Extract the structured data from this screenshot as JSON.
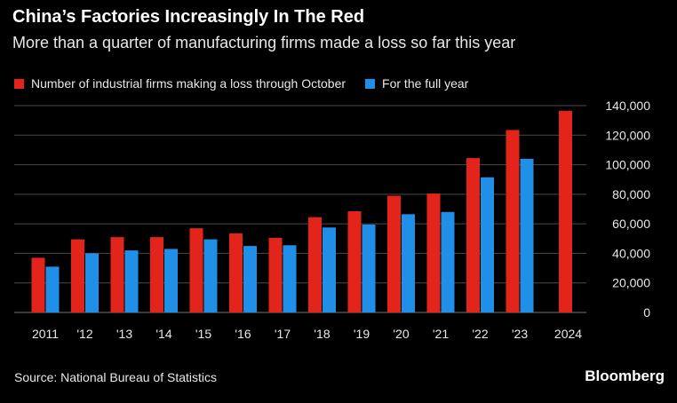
{
  "header": {
    "title": "China’s Factories Increasingly In The Red",
    "subtitle": "More than a quarter of manufacturing firms made a loss so far this year"
  },
  "footer": {
    "source": "Source: National Bureau of Statistics",
    "brand": "Bloomberg"
  },
  "colors": {
    "through_october": "#e3241b",
    "full_year": "#1f8fe8",
    "background": "#000000",
    "grid": "#4a4a4a"
  },
  "chart_data": {
    "type": "bar",
    "title": "China’s Factories Increasingly In The Red",
    "subtitle": "More than a quarter of manufacturing firms made a loss so far this year",
    "categories": [
      "2011",
      "'12",
      "'13",
      "'14",
      "'15",
      "'16",
      "'17",
      "'18",
      "'19",
      "'20",
      "'21",
      "'22",
      "'23",
      "2024"
    ],
    "series": [
      {
        "name": "Number of industrial firms making a loss through October",
        "color": "#e3241b",
        "values": [
          37000,
          49500,
          51000,
          51000,
          57000,
          53500,
          50500,
          64500,
          68500,
          79000,
          80500,
          104500,
          123500,
          136500
        ]
      },
      {
        "name": "For the full year",
        "color": "#1f8fe8",
        "values": [
          31000,
          40000,
          42000,
          43000,
          49500,
          45000,
          45500,
          57500,
          59500,
          66500,
          68000,
          91500,
          104000,
          null
        ]
      }
    ],
    "ylim": [
      0,
      140000
    ],
    "yticks": [
      0,
      20000,
      40000,
      60000,
      80000,
      100000,
      120000,
      140000
    ],
    "ytick_labels": [
      "0",
      "20,000",
      "40,000",
      "60,000",
      "80,000",
      "100,000",
      "120,000",
      "140,000"
    ],
    "y_axis_position": "right",
    "grid": true,
    "legend_position": "top-left"
  }
}
